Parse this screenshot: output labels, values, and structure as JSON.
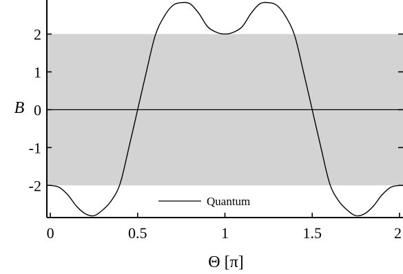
{
  "chart_data": {
    "type": "line",
    "title": "",
    "xlabel": "Θ [π]",
    "ylabel": "B",
    "xlim": [
      -0.02,
      2.02
    ],
    "ylim": [
      -2.85,
      2.9
    ],
    "x_ticks": [
      {
        "value": 0,
        "label": "0"
      },
      {
        "value": 0.5,
        "label": "0.5"
      },
      {
        "value": 1,
        "label": "1"
      },
      {
        "value": 1.5,
        "label": "1.5"
      },
      {
        "value": 2,
        "label": "2"
      }
    ],
    "y_ticks": [
      {
        "value": -2,
        "label": "-2"
      },
      {
        "value": -1,
        "label": "-1"
      },
      {
        "value": 0,
        "label": "0"
      },
      {
        "value": 1,
        "label": "1"
      },
      {
        "value": 2,
        "label": "2"
      }
    ],
    "shaded_band": {
      "y_min": -2,
      "y_max": 2,
      "color": "#d3d3d3"
    },
    "zero_line": true,
    "grid": false,
    "legend": {
      "position": "bottom-center",
      "entries": [
        "Quantum"
      ]
    },
    "series": [
      {
        "name": "Quantum",
        "color": "#000000",
        "x": [
          0,
          0.05,
          0.1,
          0.15,
          0.2,
          0.25,
          0.3,
          0.35,
          0.4,
          0.45,
          0.5,
          0.55,
          0.6,
          0.65,
          0.7,
          0.75,
          0.8,
          0.85,
          0.9,
          0.95,
          1.0,
          1.05,
          1.1,
          1.15,
          1.2,
          1.25,
          1.3,
          1.35,
          1.4,
          1.45,
          1.5,
          1.55,
          1.6,
          1.65,
          1.7,
          1.75,
          1.8,
          1.85,
          1.9,
          1.95,
          2.0
        ],
        "y": [
          -2.0,
          -2.05,
          -2.25,
          -2.55,
          -2.75,
          -2.8,
          -2.65,
          -2.4,
          -1.95,
          -1.0,
          0.0,
          1.0,
          1.95,
          2.45,
          2.75,
          2.83,
          2.8,
          2.55,
          2.2,
          2.05,
          2.0,
          2.05,
          2.2,
          2.55,
          2.8,
          2.83,
          2.75,
          2.45,
          1.95,
          1.0,
          0.0,
          -1.0,
          -1.95,
          -2.4,
          -2.65,
          -2.8,
          -2.75,
          -2.55,
          -2.25,
          -2.05,
          -2.0
        ]
      }
    ]
  }
}
